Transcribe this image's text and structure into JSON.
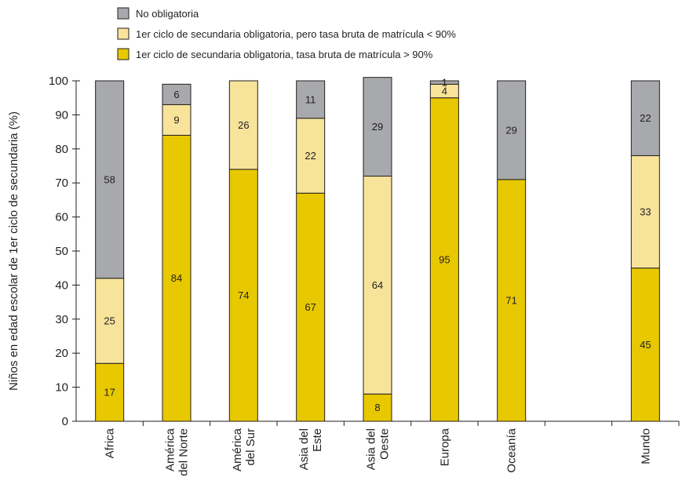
{
  "chart_data": {
    "type": "bar",
    "stacked": true,
    "ylabel": "Niños en edad escolar de 1er ciclo de secundaria (%)",
    "ylim": [
      0,
      100
    ],
    "yticks": [
      0,
      10,
      20,
      30,
      40,
      50,
      60,
      70,
      80,
      90,
      100
    ],
    "grid": false,
    "legend_position": "top-left",
    "categories": [
      [
        "Africa"
      ],
      [
        "América",
        "del Norte"
      ],
      [
        "América",
        "del Sur"
      ],
      [
        "Asia del",
        "Este"
      ],
      [
        "Asia del",
        "Oeste"
      ],
      [
        "Europa"
      ],
      [
        "Oceanía"
      ],
      [
        ""
      ],
      [
        "Mundo"
      ]
    ],
    "series": [
      {
        "name": "1er ciclo de secundaria obligatoria, tasa bruta de matrícula > 90%",
        "color": "#e8c800",
        "values": [
          17,
          84,
          74,
          67,
          8,
          95,
          71,
          null,
          45
        ],
        "labels": [
          "17",
          "84",
          "74",
          "67",
          "8",
          "95",
          "71",
          "",
          "45"
        ]
      },
      {
        "name": "1er ciclo de secundaria obligatoria, pero tasa bruta de matrícula < 90%",
        "color": "#f7e39a",
        "values": [
          25,
          9,
          26,
          22,
          64,
          4,
          0,
          null,
          33
        ],
        "labels": [
          "25",
          "9",
          "26",
          "22",
          "64",
          "4",
          "",
          "",
          "33"
        ]
      },
      {
        "name": "No obligatoria",
        "color": "#a7a9ac",
        "values": [
          58,
          6,
          0,
          11,
          29,
          1,
          29,
          null,
          22
        ],
        "labels": [
          "58",
          "6",
          "",
          "11",
          "29",
          "1",
          "29",
          "",
          "22"
        ]
      }
    ],
    "legend_order": [
      2,
      1,
      0
    ]
  }
}
